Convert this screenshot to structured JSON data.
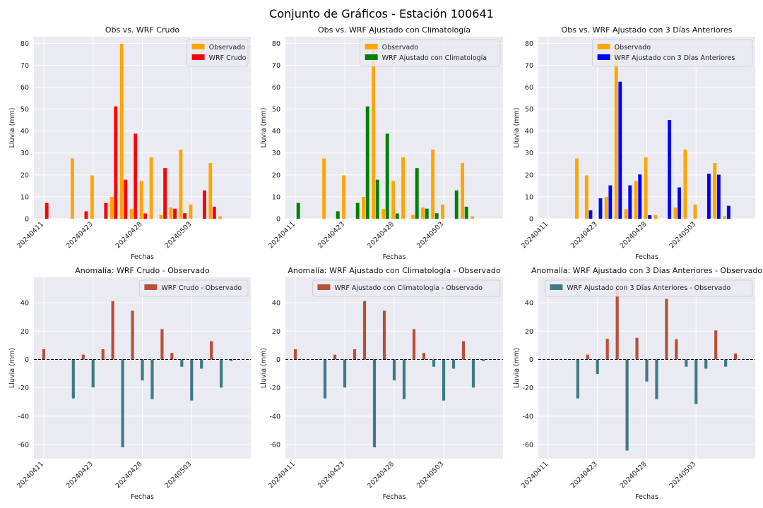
{
  "figure": {
    "title": "Conjunto de Gráficos - Estación 100641"
  },
  "colors": {
    "observed": "#ffa500",
    "wrf_raw": "#ff0000",
    "wrf_clim": "#008000",
    "wrf_3d": "#0000ff",
    "anomaly_pos": "#b94f37",
    "anomaly_neg": "#3f7a85",
    "panel_bg": "#eaeaf2"
  },
  "chart_data": [
    {
      "type": "bar",
      "title": "Obs vs. WRF Crudo",
      "xlabel": "Fechas",
      "ylabel": "Lluvia (mm)",
      "ylim": [
        0,
        83
      ],
      "yticks": [
        0,
        10,
        20,
        30,
        40,
        50,
        60,
        70,
        80
      ],
      "x_index": [
        0,
        3,
        4,
        5,
        6,
        7,
        8,
        9,
        10,
        11,
        12,
        13,
        14,
        15,
        16,
        17,
        18,
        19,
        20
      ],
      "xticks": [
        {
          "index": 0,
          "label": "20240411"
        },
        {
          "index": 5,
          "label": "20240423"
        },
        {
          "index": 10,
          "label": "20240428"
        },
        {
          "index": 15,
          "label": "20240503"
        }
      ],
      "legend_position": "top-right",
      "grid": true,
      "series": [
        {
          "name": "Observado",
          "color_key": "observed",
          "values": [
            0,
            27.5,
            0,
            19.8,
            0,
            10,
            79.8,
            4.4,
            17.2,
            28,
            1.7,
            5.1,
            31.5,
            6.5,
            0,
            25.4,
            1.1,
            0,
            0
          ]
        },
        {
          "name": "WRF Crudo",
          "color_key": "wrf_raw",
          "values": [
            7.2,
            0,
            3.4,
            0,
            7.2,
            51.2,
            17.8,
            38.8,
            2.4,
            0,
            23.1,
            4.6,
            2.5,
            0,
            12.9,
            5.5,
            0,
            0,
            0
          ]
        }
      ]
    },
    {
      "type": "bar",
      "title": "Obs vs. WRF Ajustado con Climatología",
      "xlabel": "Fechas",
      "ylabel": "Lluvia (mm)",
      "ylim": [
        0,
        83
      ],
      "yticks": [
        0,
        10,
        20,
        30,
        40,
        50,
        60,
        70,
        80
      ],
      "x_index": [
        0,
        3,
        4,
        5,
        6,
        7,
        8,
        9,
        10,
        11,
        12,
        13,
        14,
        15,
        16,
        17,
        18,
        19,
        20
      ],
      "xticks": [
        {
          "index": 0,
          "label": "20240411"
        },
        {
          "index": 5,
          "label": "20240423"
        },
        {
          "index": 10,
          "label": "20240428"
        },
        {
          "index": 15,
          "label": "20240503"
        }
      ],
      "legend_position": "top-right",
      "grid": true,
      "series": [
        {
          "name": "Observado",
          "color_key": "observed",
          "values": [
            0,
            27.5,
            0,
            19.8,
            0,
            10,
            79.8,
            4.4,
            17.2,
            28,
            1.7,
            5.1,
            31.5,
            6.5,
            0,
            25.4,
            1.1,
            0,
            0
          ]
        },
        {
          "name": "WRF Ajustado con Climatología",
          "color_key": "wrf_clim",
          "values": [
            7.2,
            0,
            3.4,
            0,
            7.2,
            51.2,
            17.8,
            38.8,
            2.4,
            0,
            23.1,
            4.6,
            2.5,
            0,
            12.9,
            5.5,
            0,
            0,
            0
          ]
        }
      ]
    },
    {
      "type": "bar",
      "title": "Obs vs. WRF Ajustado con 3 Días Anteriores",
      "xlabel": "Fechas",
      "ylabel": "Lluvia (mm)",
      "ylim": [
        0,
        83
      ],
      "yticks": [
        0,
        10,
        20,
        30,
        40,
        50,
        60,
        70,
        80
      ],
      "x_index": [
        0,
        3,
        4,
        5,
        6,
        7,
        8,
        9,
        10,
        11,
        12,
        13,
        14,
        15,
        16,
        17,
        18,
        19,
        20
      ],
      "xticks": [
        {
          "index": 0,
          "label": "20240411"
        },
        {
          "index": 5,
          "label": "20240423"
        },
        {
          "index": 10,
          "label": "20240428"
        },
        {
          "index": 15,
          "label": "20240503"
        }
      ],
      "legend_position": "top-right",
      "grid": true,
      "series": [
        {
          "name": "Observado",
          "color_key": "observed",
          "values": [
            0,
            27.5,
            19.8,
            0,
            10,
            79.8,
            4.4,
            17.2,
            28,
            1.7,
            0,
            5.1,
            31.5,
            6.5,
            0,
            25.4,
            1.1,
            0,
            0
          ]
        },
        {
          "name": "WRF Ajustado con 3 Días Anteriores",
          "color_key": "wrf_3d",
          "values": [
            0,
            0,
            3.8,
            9.3,
            15.2,
            62.5,
            15.2,
            20.2,
            1.6,
            0,
            45,
            14.3,
            0,
            0,
            20.5,
            20.1,
            5.9,
            0,
            0
          ]
        }
      ]
    },
    {
      "type": "bar",
      "title": "Anomalía: WRF Crudo - Observado",
      "xlabel": "Fechas",
      "ylabel": "Lluvia (mm)",
      "ylim": [
        -70,
        58
      ],
      "yticks": [
        -60,
        -40,
        -20,
        0,
        20,
        40
      ],
      "zero_line": true,
      "x_index": [
        0,
        3,
        4,
        5,
        6,
        7,
        8,
        9,
        10,
        11,
        12,
        13,
        14,
        15,
        16,
        17,
        18,
        19,
        20
      ],
      "xticks": [
        {
          "index": 0,
          "label": "20240411"
        },
        {
          "index": 5,
          "label": "20240423"
        },
        {
          "index": 10,
          "label": "20240428"
        },
        {
          "index": 15,
          "label": "20240503"
        }
      ],
      "legend_position": "top-right",
      "legend_color_key": "anomaly_pos",
      "grid": true,
      "series": [
        {
          "name": "WRF Crudo - Observado",
          "values": [
            7.2,
            -27.5,
            3.4,
            -19.8,
            7.2,
            41.2,
            -62,
            34.4,
            -14.8,
            -28,
            21.4,
            4.6,
            -5.1,
            -29,
            -6.5,
            12.9,
            -19.9,
            -1.1,
            0
          ]
        }
      ]
    },
    {
      "type": "bar",
      "title": "Anomalía: WRF Ajustado con Climatología - Observado",
      "xlabel": "Fechas",
      "ylabel": "Lluvia (mm)",
      "ylim": [
        -70,
        58
      ],
      "yticks": [
        -60,
        -40,
        -20,
        0,
        20,
        40
      ],
      "zero_line": true,
      "x_index": [
        0,
        3,
        4,
        5,
        6,
        7,
        8,
        9,
        10,
        11,
        12,
        13,
        14,
        15,
        16,
        17,
        18,
        19,
        20
      ],
      "xticks": [
        {
          "index": 0,
          "label": "20240411"
        },
        {
          "index": 5,
          "label": "20240423"
        },
        {
          "index": 10,
          "label": "20240428"
        },
        {
          "index": 15,
          "label": "20240503"
        }
      ],
      "legend_position": "top-right",
      "legend_color_key": "anomaly_pos",
      "grid": true,
      "series": [
        {
          "name": "WRF Ajustado con Climatología - Observado",
          "values": [
            7.2,
            -27.5,
            3.4,
            -19.8,
            7.2,
            41.2,
            -62,
            34.4,
            -14.8,
            -28,
            21.4,
            4.6,
            -5.1,
            -29,
            -6.5,
            12.9,
            -19.9,
            -1.1,
            0
          ]
        }
      ]
    },
    {
      "type": "bar",
      "title": "Anomalía: WRF Ajustado con 3 Días Anteriores - Observado",
      "xlabel": "Fechas",
      "ylabel": "Lluvia (mm)",
      "ylim": [
        -70,
        58
      ],
      "yticks": [
        -60,
        -40,
        -20,
        0,
        20,
        40
      ],
      "zero_line": true,
      "x_index": [
        0,
        3,
        4,
        5,
        6,
        7,
        8,
        9,
        10,
        11,
        12,
        13,
        14,
        15,
        16,
        17,
        18,
        19,
        20
      ],
      "xticks": [
        {
          "index": 0,
          "label": "20240411"
        },
        {
          "index": 5,
          "label": "20240423"
        },
        {
          "index": 10,
          "label": "20240428"
        },
        {
          "index": 15,
          "label": "20240503"
        }
      ],
      "legend_position": "top-right",
      "legend_color_key": "anomaly_neg",
      "grid": true,
      "series": [
        {
          "name": "WRF Ajustado con 3 Días Anteriores - Observado",
          "values": [
            0,
            -27.5,
            3.4,
            -10.3,
            14.5,
            52.5,
            -64.3,
            15.3,
            -15.6,
            -28,
            42.8,
            14.3,
            -5.1,
            -31.5,
            -6.5,
            20.5,
            -5.1,
            4.2,
            0
          ]
        }
      ]
    }
  ]
}
